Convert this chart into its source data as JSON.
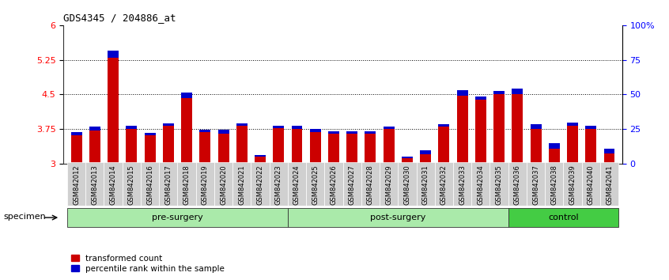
{
  "title": "GDS4345 / 204886_at",
  "samples": [
    "GSM842012",
    "GSM842013",
    "GSM842014",
    "GSM842015",
    "GSM842016",
    "GSM842017",
    "GSM842018",
    "GSM842019",
    "GSM842020",
    "GSM842021",
    "GSM842022",
    "GSM842023",
    "GSM842024",
    "GSM842025",
    "GSM842026",
    "GSM842027",
    "GSM842028",
    "GSM842029",
    "GSM842030",
    "GSM842031",
    "GSM842032",
    "GSM842033",
    "GSM842034",
    "GSM842035",
    "GSM842036",
    "GSM842037",
    "GSM842038",
    "GSM842039",
    "GSM842040",
    "GSM842041"
  ],
  "red_values": [
    3.62,
    3.72,
    5.3,
    3.76,
    3.62,
    3.83,
    4.43,
    3.68,
    3.65,
    3.83,
    3.15,
    3.78,
    3.76,
    3.68,
    3.65,
    3.65,
    3.65,
    3.75,
    3.12,
    3.2,
    3.8,
    4.48,
    4.38,
    4.5,
    4.5,
    3.75,
    3.32,
    3.83,
    3.75,
    3.22
  ],
  "blue_values": [
    0.06,
    0.09,
    0.15,
    0.06,
    0.05,
    0.05,
    0.12,
    0.06,
    0.08,
    0.05,
    0.04,
    0.05,
    0.06,
    0.08,
    0.05,
    0.05,
    0.05,
    0.06,
    0.04,
    0.1,
    0.05,
    0.11,
    0.07,
    0.08,
    0.12,
    0.11,
    0.12,
    0.07,
    0.07,
    0.11
  ],
  "ymin": 3.0,
  "ymax": 6.0,
  "yticks": [
    3.0,
    3.75,
    4.5,
    5.25,
    6.0
  ],
  "ytick_labels": [
    "3",
    "3.75",
    "4.5",
    "5.25",
    "6"
  ],
  "right_ytick_pcts": [
    0,
    25,
    50,
    75,
    100
  ],
  "right_ytick_labels": [
    "0",
    "25",
    "50",
    "75",
    "100%"
  ],
  "dotted_lines": [
    3.75,
    4.5,
    5.25
  ],
  "bar_color_red": "#CC0000",
  "bar_color_blue": "#0000CC",
  "bg_color": "#FFFFFF",
  "group_starts": [
    0,
    12,
    24
  ],
  "group_ends": [
    12,
    24,
    30
  ],
  "group_labels": [
    "pre-surgery",
    "post-surgery",
    "control"
  ],
  "group_colors": [
    "#aaeaaa",
    "#aaeaaa",
    "#44cc44"
  ],
  "group_edge_color": "#333333",
  "xlabel_bg": "#d0d0d0"
}
